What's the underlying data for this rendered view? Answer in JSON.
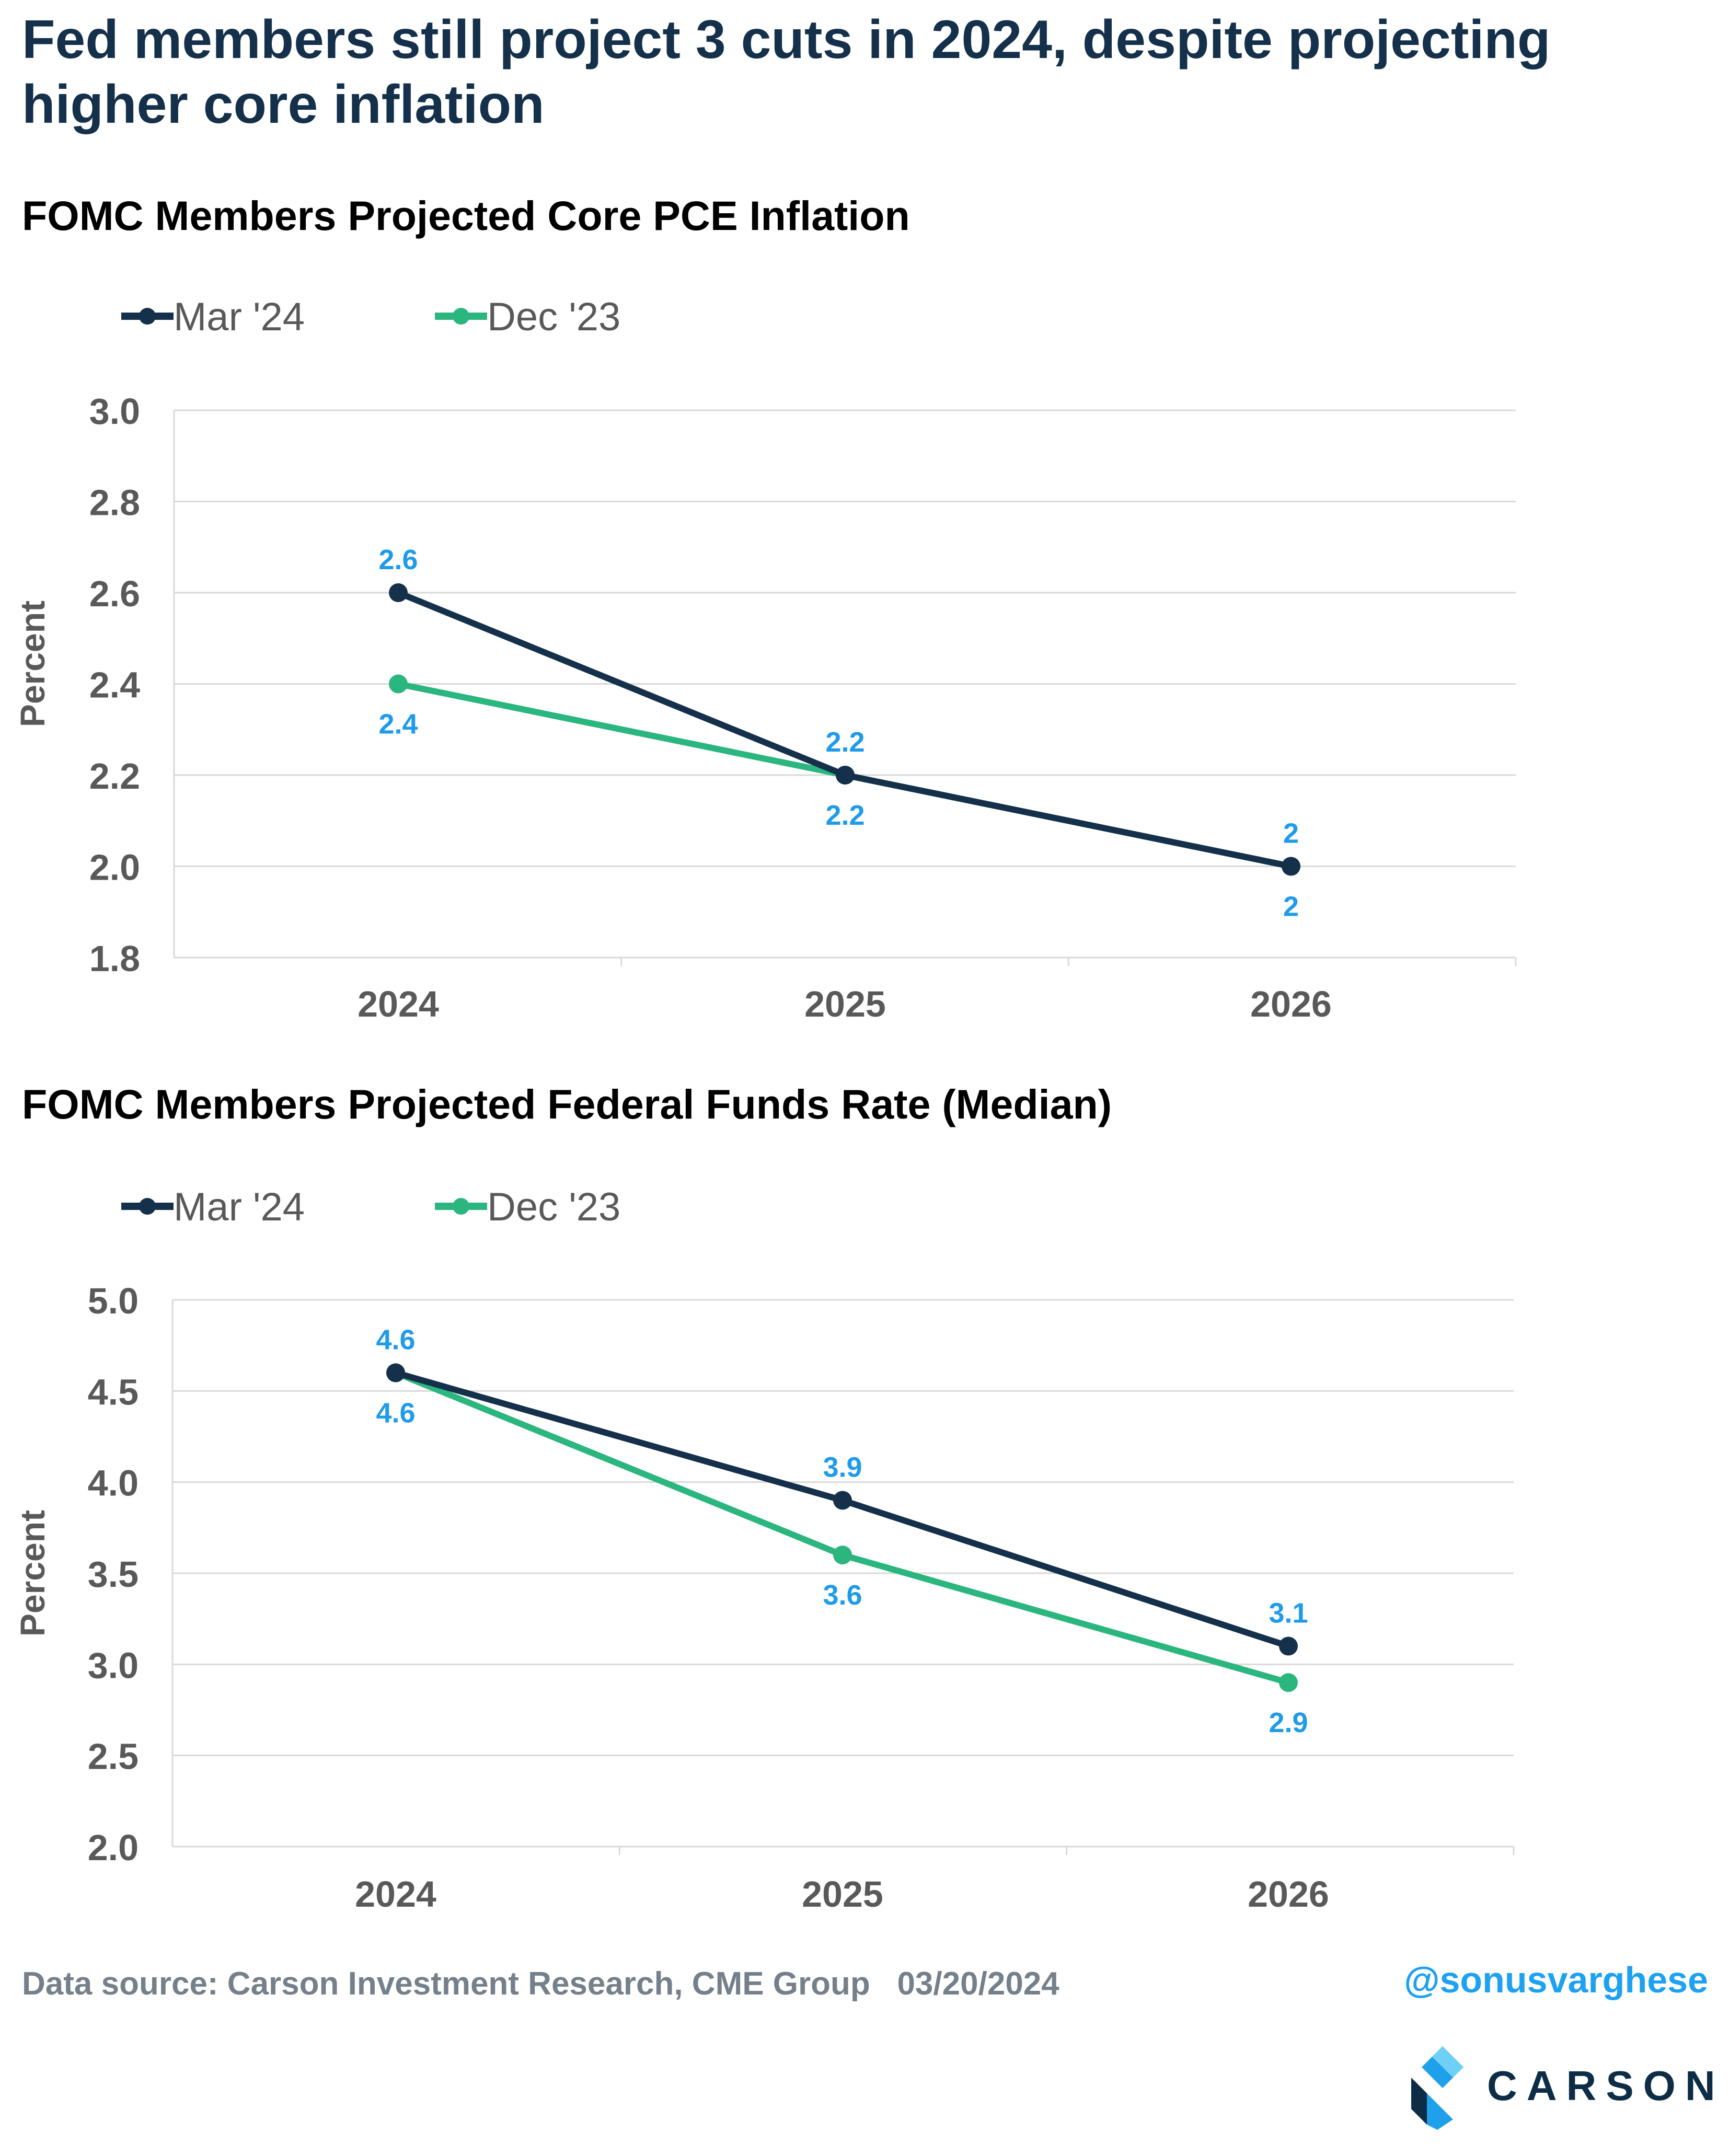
{
  "headline": "Fed members still project 3 cuts in 2024, despite projecting higher core inflation",
  "colors": {
    "series_1": "#14304a",
    "series_2": "#2bb67f",
    "data_label": "#1e9bea",
    "grid": "#d9d9d9",
    "axis_text": "#595959"
  },
  "chart_data": [
    {
      "type": "line",
      "title": "FOMC Members Projected Core PCE Inflation",
      "ylabel": "Percent",
      "xlabel": "",
      "categories": [
        "2024",
        "2025",
        "2026"
      ],
      "ylim": [
        1.8,
        3.0
      ],
      "yticks": [
        "1.8",
        "2.0",
        "2.2",
        "2.4",
        "2.6",
        "2.8",
        "3.0"
      ],
      "grid": true,
      "legend_position": "top-left",
      "series": [
        {
          "name": "Mar '24",
          "values": [
            2.6,
            2.2,
            2.0
          ],
          "labels": [
            "2.6",
            "2.2",
            "2"
          ],
          "label_pos": [
            "above",
            "below",
            "below"
          ]
        },
        {
          "name": "Dec '23",
          "values": [
            2.4,
            2.2,
            2.0
          ],
          "labels": [
            "2.4",
            "2.2",
            "2"
          ],
          "label_pos": [
            "below",
            "above",
            "above"
          ]
        }
      ]
    },
    {
      "type": "line",
      "title": "FOMC Members Projected Federal Funds Rate (Median)",
      "ylabel": "Percent",
      "xlabel": "",
      "categories": [
        "2024",
        "2025",
        "2026"
      ],
      "ylim": [
        2.0,
        5.0
      ],
      "yticks": [
        "2.0",
        "2.5",
        "3.0",
        "3.5",
        "4.0",
        "4.5",
        "5.0"
      ],
      "grid": true,
      "legend_position": "top-left",
      "series": [
        {
          "name": "Mar '24",
          "values": [
            4.6,
            3.9,
            3.1
          ],
          "labels": [
            "4.6",
            "3.9",
            "3.1"
          ],
          "label_pos": [
            "above",
            "above",
            "above"
          ]
        },
        {
          "name": "Dec '23",
          "values": [
            4.6,
            3.6,
            2.9
          ],
          "labels": [
            "4.6",
            "3.6",
            "2.9"
          ],
          "label_pos": [
            "below",
            "below",
            "below"
          ]
        }
      ]
    }
  ],
  "footer": {
    "source": "Data source: Carson Investment Research, CME Group   03/20/2024",
    "handle": "@sonusvarghese",
    "logo_text": "CARSON"
  }
}
